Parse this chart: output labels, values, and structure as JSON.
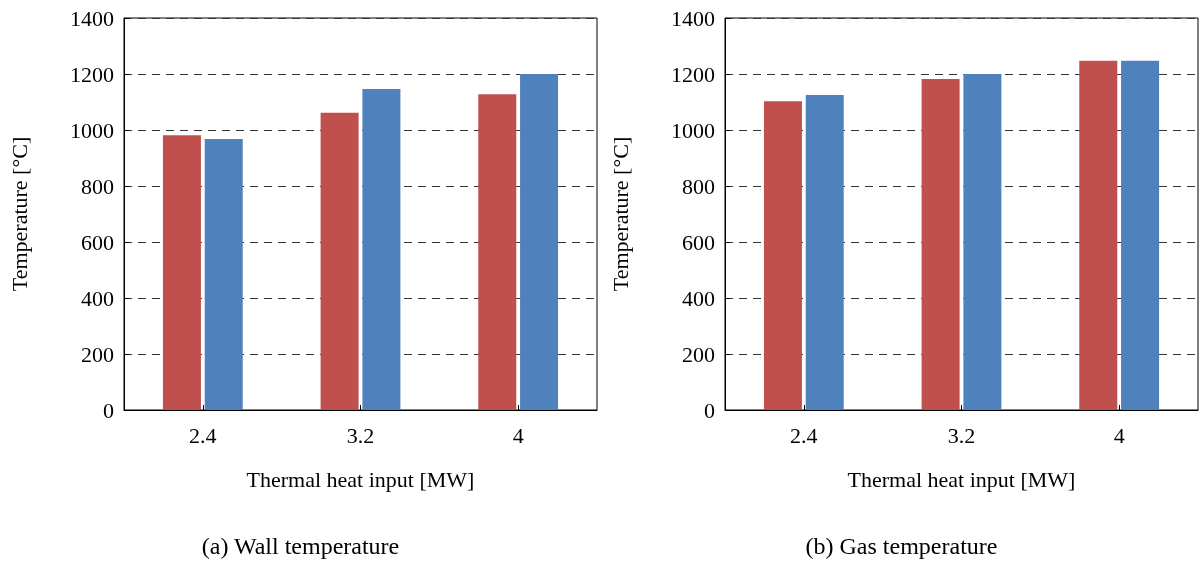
{
  "chart_data": [
    {
      "type": "bar",
      "title": "(a) Wall temperature",
      "xlabel": "Thermal heat input [MW]",
      "ylabel": "Temperature [°C]",
      "categories": [
        "2.4",
        "3.2",
        "4"
      ],
      "series": [
        {
          "color": "#c0504d",
          "values": [
            981,
            1062,
            1128
          ]
        },
        {
          "color": "#4f81bd",
          "values": [
            968,
            1146,
            1200
          ]
        }
      ],
      "ylim": [
        0,
        1400
      ],
      "yticks": [
        0,
        200,
        400,
        600,
        800,
        1000,
        1200,
        1400
      ],
      "grid": "y"
    },
    {
      "type": "bar",
      "title": "(b) Gas temperature",
      "xlabel": "Thermal heat input [MW]",
      "ylabel": "Temperature [°C]",
      "categories": [
        "2.4",
        "3.2",
        "4"
      ],
      "series": [
        {
          "color": "#c0504d",
          "values": [
            1103,
            1182,
            1247
          ]
        },
        {
          "color": "#4f81bd",
          "values": [
            1125,
            1200,
            1247
          ]
        }
      ],
      "ylim": [
        0,
        1400
      ],
      "yticks": [
        0,
        200,
        400,
        600,
        800,
        1000,
        1200,
        1400
      ],
      "grid": "y"
    }
  ]
}
